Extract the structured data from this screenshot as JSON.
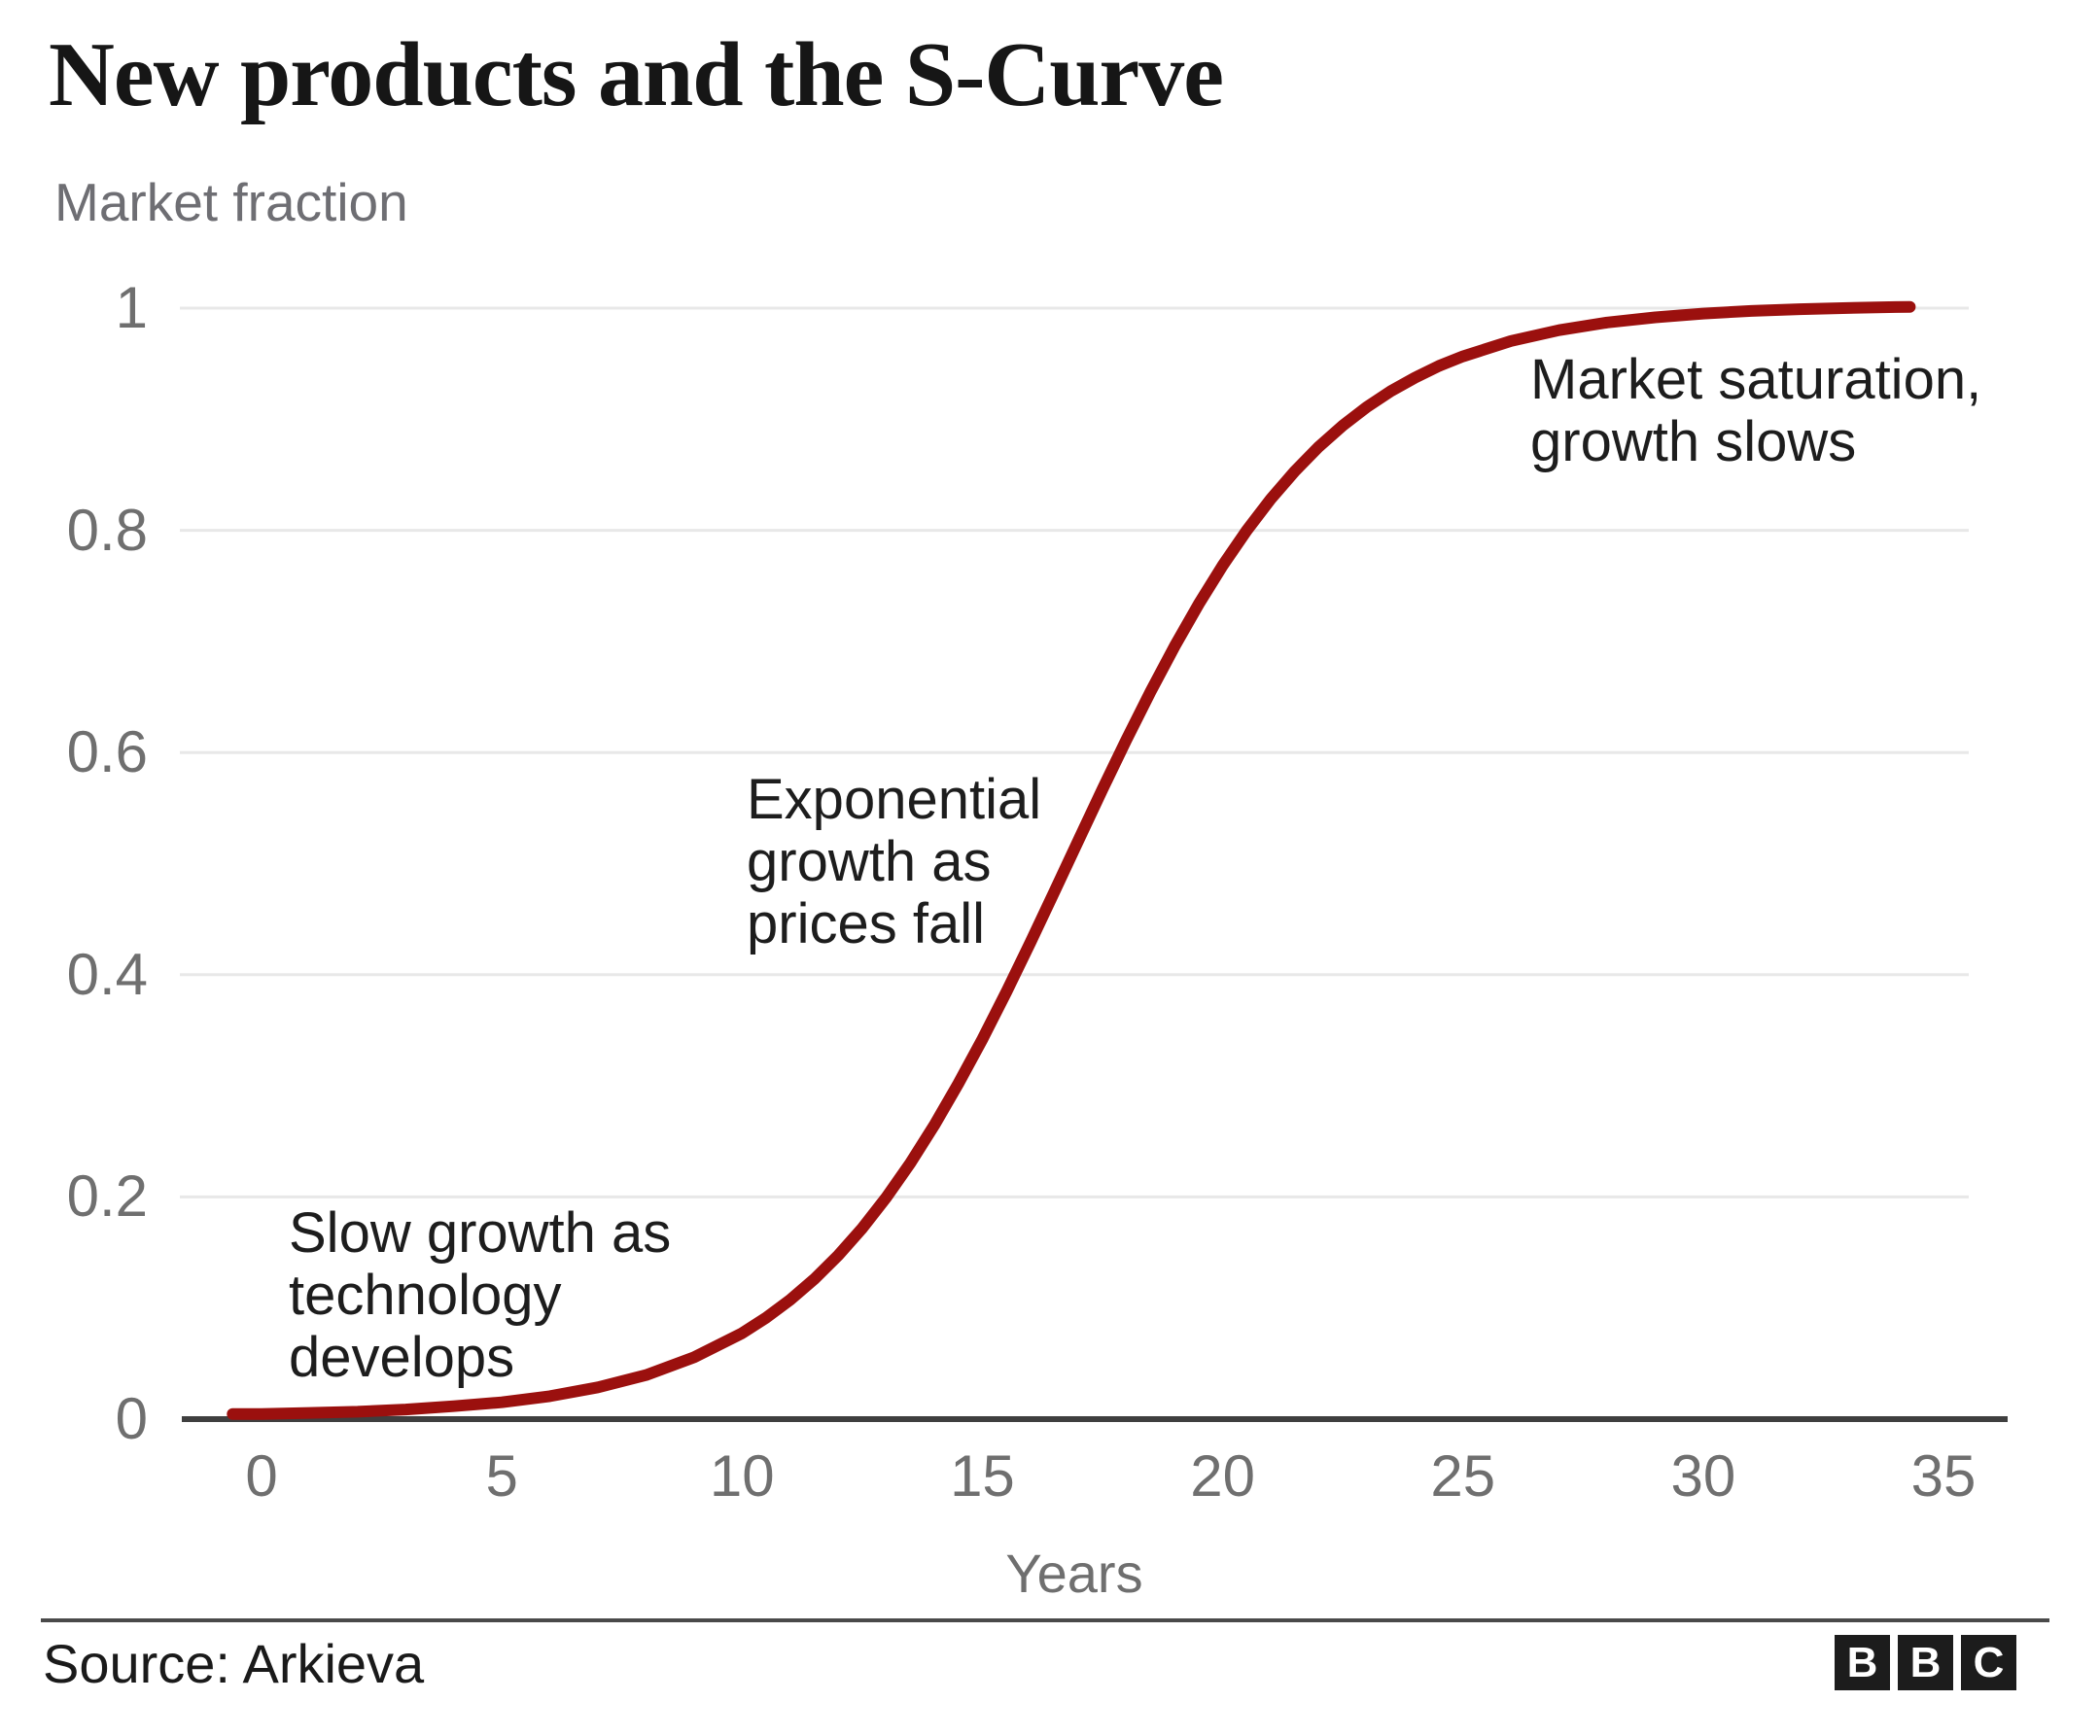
{
  "header": {
    "title": "New products and the S-Curve"
  },
  "chart_data": {
    "type": "line",
    "title": "New products and the S-Curve",
    "ylabel": "Market fraction",
    "xlabel": "Years",
    "x_ticks": [
      0,
      5,
      10,
      15,
      20,
      25,
      30,
      35
    ],
    "y_tick_labels": [
      "0",
      "0.2",
      "0.4",
      "0.6",
      "0.8",
      "1"
    ],
    "y_tick_values": [
      0,
      0.2,
      0.4,
      0.6,
      0.8,
      1
    ],
    "xlim": [
      -1.7,
      36.3
    ],
    "ylim": [
      0,
      1
    ],
    "grid": "horizontal-light",
    "legend": "none",
    "series": [
      {
        "name": "Market fraction S-curve",
        "color": "#9b100e",
        "x": [
          -0.6,
          0,
          1,
          2,
          3,
          4,
          5,
          6,
          7,
          8,
          9,
          10,
          10.5,
          11,
          11.5,
          12,
          12.5,
          13,
          13.5,
          14,
          14.5,
          15,
          15.5,
          16,
          16.5,
          17,
          17.5,
          18,
          18.5,
          19,
          19.5,
          20,
          20.5,
          21,
          21.5,
          22,
          22.5,
          23,
          23.5,
          24,
          24.5,
          25,
          26,
          27,
          28,
          29,
          30,
          31,
          32,
          33,
          34,
          34.3
        ],
        "y": [
          0.002,
          0.002,
          0.003,
          0.004,
          0.006,
          0.009,
          0.0125,
          0.018,
          0.026,
          0.037,
          0.053,
          0.0747,
          0.0886,
          0.1047,
          0.1233,
          0.1448,
          0.1692,
          0.1969,
          0.2277,
          0.2619,
          0.2993,
          0.3394,
          0.382,
          0.4265,
          0.4723,
          0.5185,
          0.5644,
          0.6091,
          0.6523,
          0.693,
          0.7309,
          0.7657,
          0.7972,
          0.8255,
          0.8505,
          0.8726,
          0.8917,
          0.9084,
          0.9227,
          0.9347,
          0.9453,
          0.954,
          0.9678,
          0.9775,
          0.9844,
          0.9891,
          0.9925,
          0.9948,
          0.9964,
          0.9975,
          0.9983,
          0.9985
        ]
      }
    ],
    "annotations": [
      {
        "lines": [
          "Slow growth as",
          "technology",
          "develops"
        ],
        "anchor_x": 0.57,
        "anchor_y": 0.195
      },
      {
        "lines": [
          "Exponential",
          "growth as",
          "prices fall"
        ],
        "anchor_x": 10.1,
        "anchor_y": 0.585
      },
      {
        "lines": [
          "Market saturation,",
          "growth slows"
        ],
        "anchor_x": 26.4,
        "anchor_y": 0.963
      }
    ]
  },
  "footer": {
    "source": "Source: Arkieva",
    "logo_letters": [
      "B",
      "B",
      "C"
    ]
  },
  "colors": {
    "curve": "#9b100e",
    "axis": "#3f3f3f",
    "grid": "#e8e8e8",
    "tick_text": "#6f6f6f",
    "title_text": "#161616",
    "annotation_text": "#1d1d1d"
  }
}
